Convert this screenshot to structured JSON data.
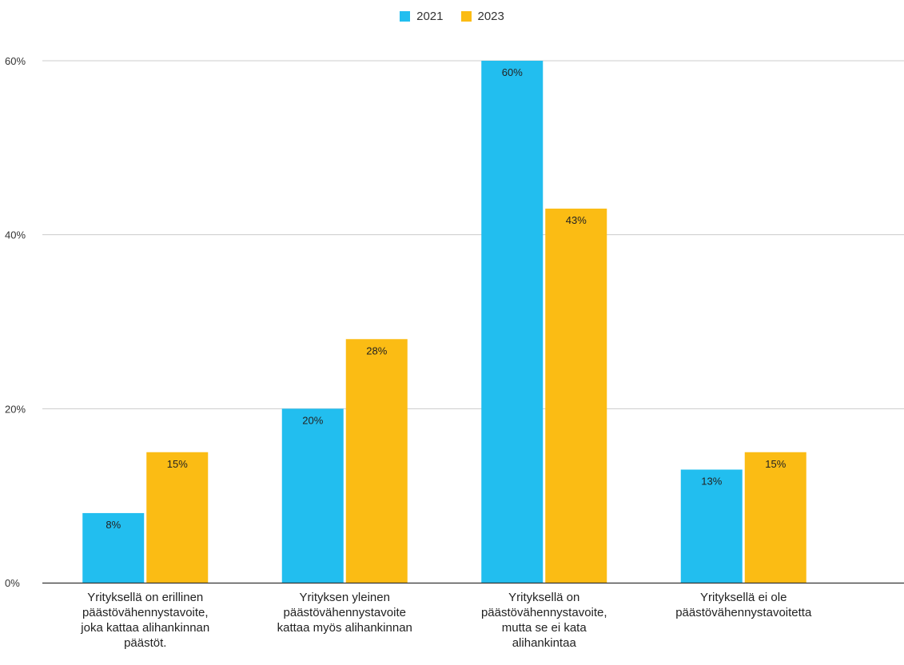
{
  "chart_data": {
    "type": "bar",
    "categories": [
      [
        "Yrityksellä on erillinen",
        "päästövähennystavoite,",
        "joka kattaa alihankinnan",
        "päästöt."
      ],
      [
        "Yrityksen yleinen",
        "päästövähennystavoite",
        "kattaa myös alihankinnan"
      ],
      [
        "Yrityksellä on",
        "päästövähennystavoite,",
        "mutta se ei kata",
        "alihankintaa"
      ],
      [
        "Yrityksellä ei ole",
        "päästövähennystavoitetta"
      ]
    ],
    "series": [
      {
        "name": "2021",
        "color": "#22BEEF",
        "values": [
          8,
          20,
          60,
          13
        ],
        "labels": [
          "8%",
          "20%",
          "60%",
          "13%"
        ]
      },
      {
        "name": "2023",
        "color": "#FBBC14",
        "values": [
          15,
          28,
          43,
          15
        ],
        "labels": [
          "15%",
          "28%",
          "43%",
          "15%"
        ]
      }
    ],
    "ylim": [
      0,
      60
    ],
    "yticks": [
      0,
      20,
      40,
      60
    ],
    "ytick_labels": [
      "0%",
      "20%",
      "40%",
      "60%"
    ],
    "legend_position": "top-center",
    "grid": true
  }
}
